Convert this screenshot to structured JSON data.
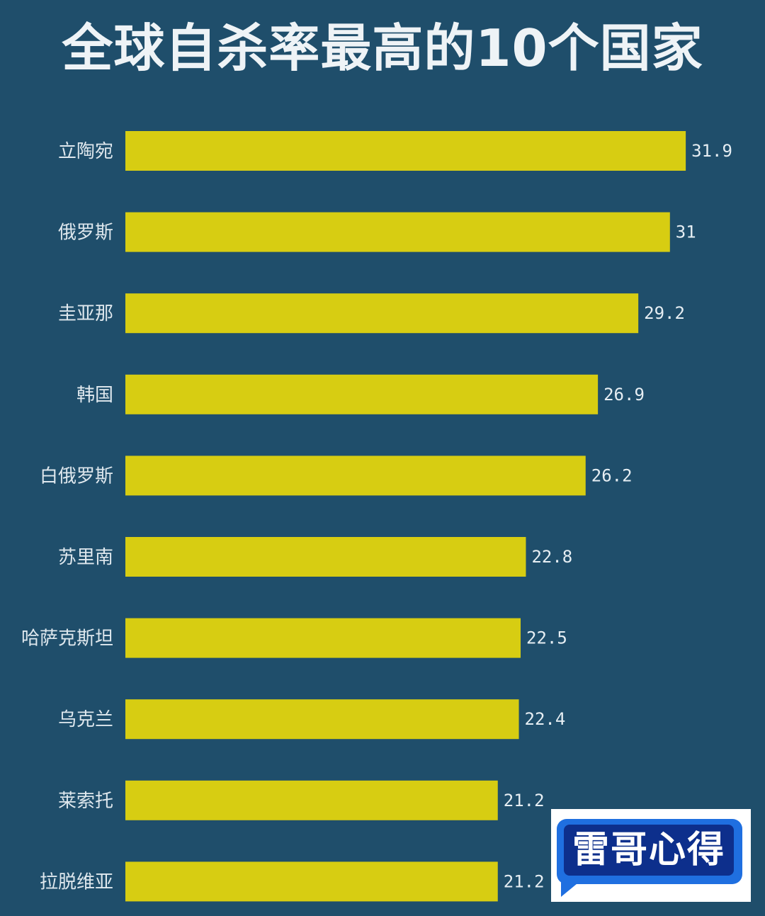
{
  "chart_data": {
    "type": "bar",
    "orientation": "horizontal",
    "title": "全球自杀率最高的10个国家",
    "categories": [
      "立陶宛",
      "俄罗斯",
      "圭亚那",
      "韩国",
      "白俄罗斯",
      "苏里南",
      "哈萨克斯坦",
      "乌克兰",
      "莱索托",
      "拉脱维亚"
    ],
    "values": [
      31.9,
      31,
      29.2,
      26.9,
      26.2,
      22.8,
      22.5,
      22.4,
      21.2,
      21.2
    ],
    "value_labels": [
      "31.9",
      "31",
      "29.2",
      "26.9",
      "26.2",
      "22.8",
      "22.5",
      "22.4",
      "21.2",
      "21.2"
    ],
    "xlabel": "",
    "ylabel": "",
    "grid": false,
    "bar_color": "#d7cd12",
    "background_color": "#1f4e6b"
  },
  "watermark": {
    "text": "雷哥心得"
  }
}
